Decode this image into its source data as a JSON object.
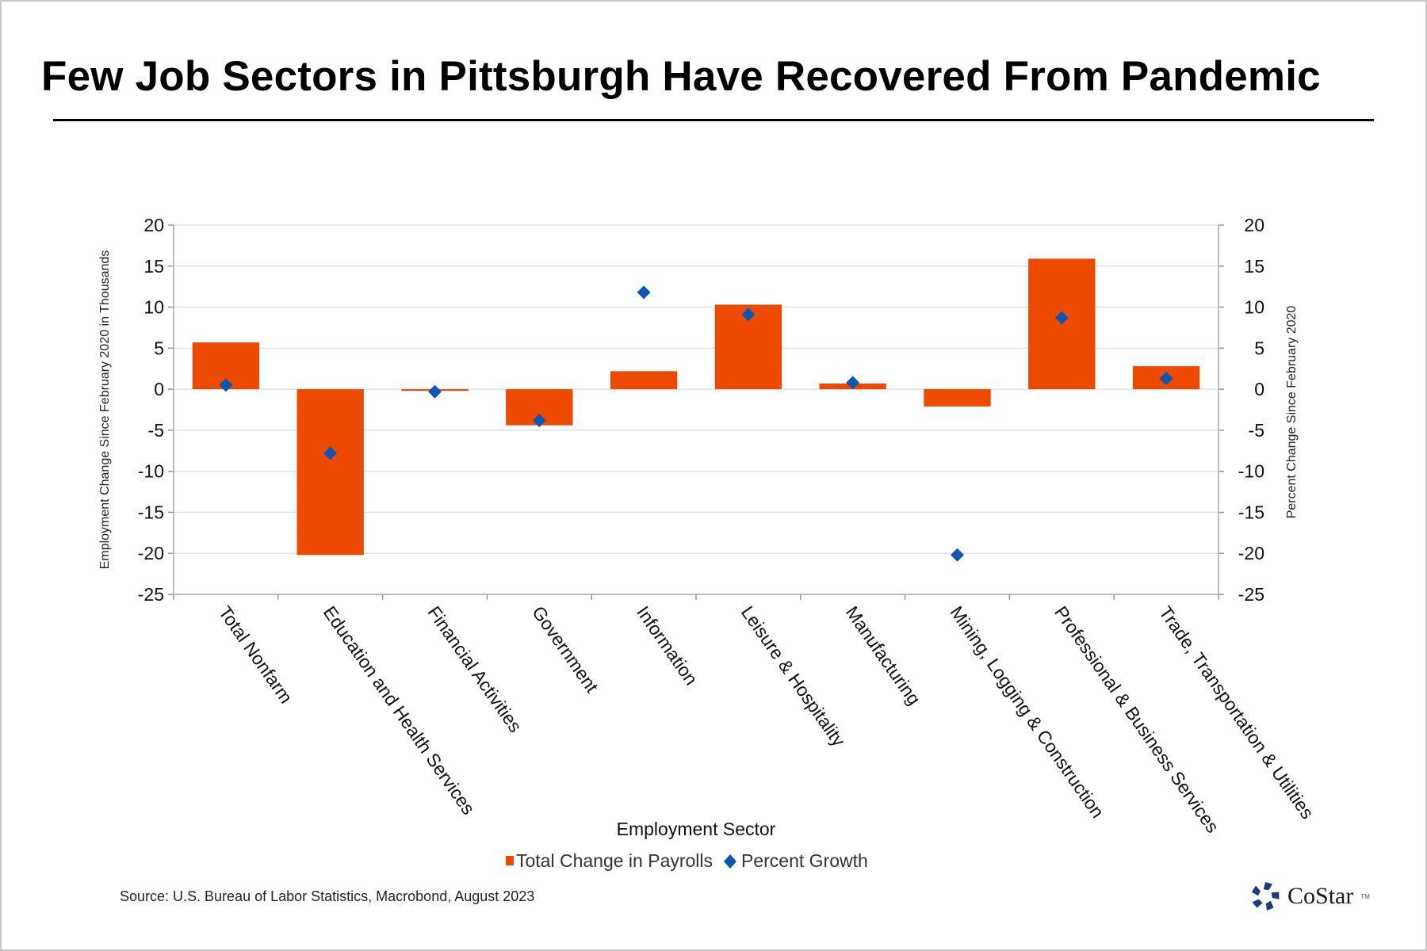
{
  "title": "Few Job Sectors in Pittsburgh Have Recovered From Pandemic",
  "source": "Source: U.S. Bureau of Labor Statistics, Macrobond, August 2023",
  "logo": {
    "icon": "costar-star-icon",
    "text": "CoStar",
    "tm": "TM",
    "color": "#1f3a7a"
  },
  "chart_data": {
    "type": "bar",
    "title": "Few Job Sectors in Pittsburgh Have Recovered From Pandemic",
    "xlabel": "Employment Sector",
    "ylabel": "Employment Change Since February 2020 in Thousands",
    "y2label": "Percent Change Since February 2020",
    "ylim": [
      -25,
      20
    ],
    "y2lim": [
      -25,
      20
    ],
    "yticks": [
      20,
      15,
      10,
      5,
      0,
      -5,
      -10,
      -15,
      -20,
      -25
    ],
    "grid": true,
    "legend_position": "bottom-center",
    "categories": [
      "Total Nonfarm",
      "Education and Health Services",
      "Financial Activities",
      "Government",
      "Information",
      "Leisure & Hospitality",
      "Manufacturing",
      "Mining, Logging & Construction",
      "Professional & Business Services",
      "Trade, Transportation & Utilities"
    ],
    "series": [
      {
        "name": "Total Change in Payrolls",
        "type": "bar",
        "axis": "left",
        "color": "#ec4a00",
        "values": [
          5.7,
          -20.2,
          -0.2,
          -4.4,
          2.2,
          10.3,
          0.7,
          -2.1,
          15.9,
          2.8
        ]
      },
      {
        "name": "Percent Growth",
        "type": "scatter",
        "marker": "diamond",
        "axis": "right",
        "color": "#0d56b3",
        "values": [
          0.5,
          -7.8,
          -0.3,
          -3.8,
          11.8,
          9.1,
          0.8,
          -20.2,
          8.7,
          1.3
        ]
      }
    ]
  }
}
